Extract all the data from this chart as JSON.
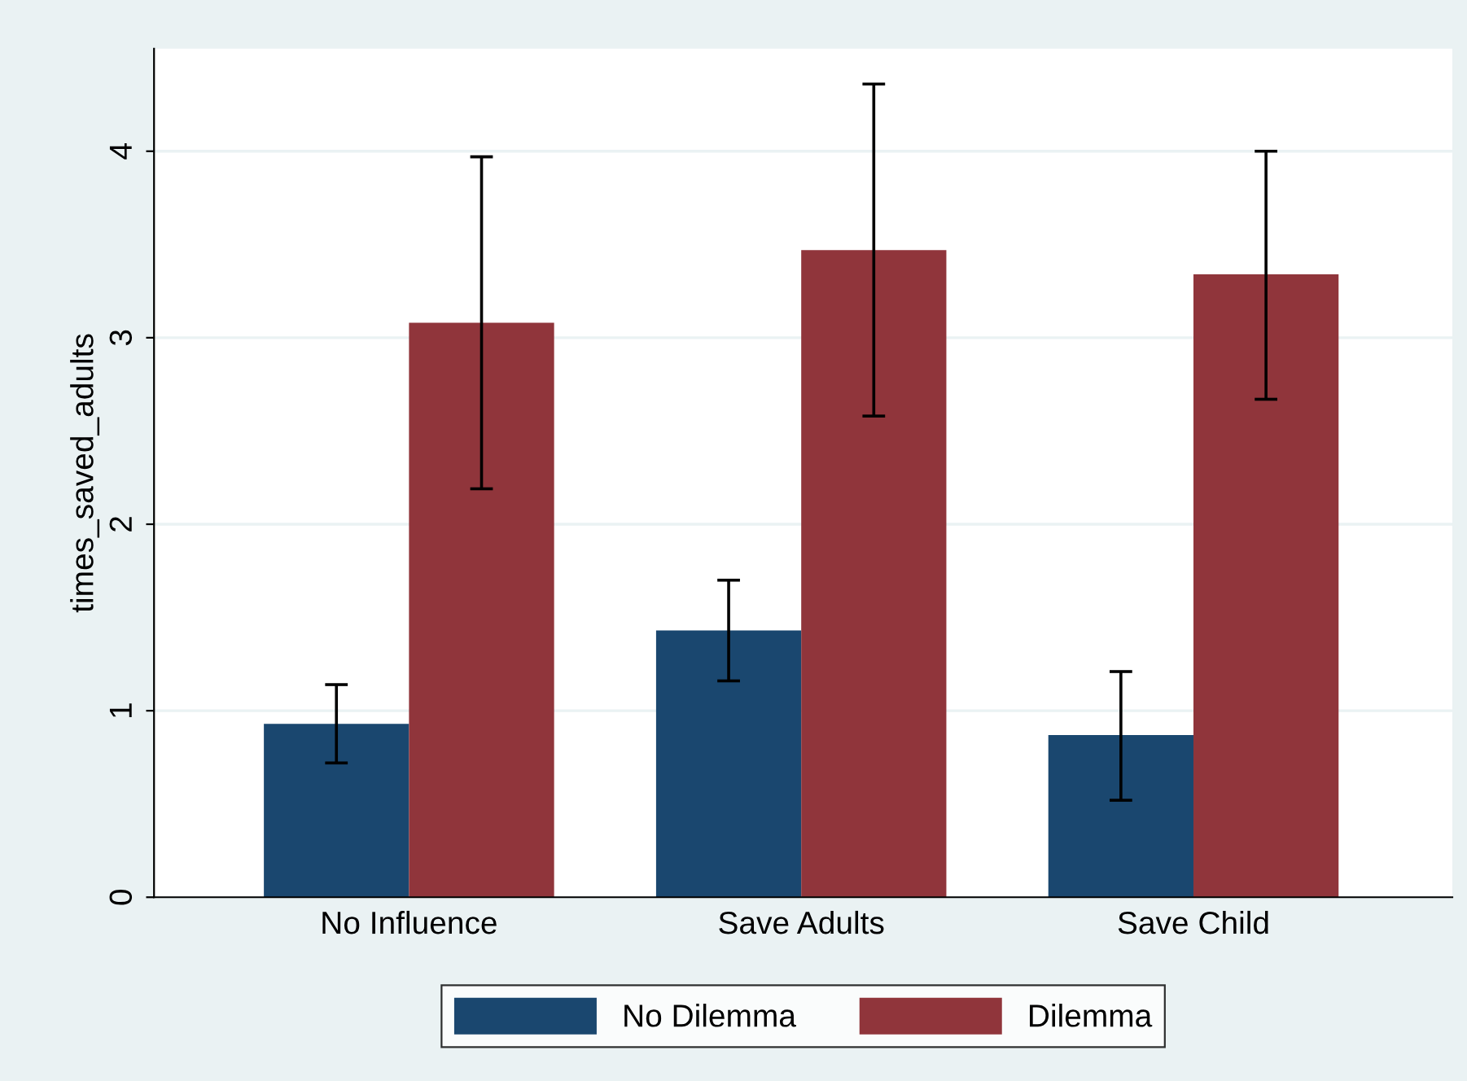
{
  "chart_data": {
    "type": "bar",
    "ylabel": "times_saved_adults",
    "categories": [
      "No Influence",
      "Save Adults",
      "Save Child"
    ],
    "series": [
      {
        "name": "No Dilemma",
        "color": "#1a476f",
        "values": [
          0.93,
          1.43,
          0.87
        ],
        "errors": [
          [
            0.72,
            1.14
          ],
          [
            1.16,
            1.7
          ],
          [
            0.52,
            1.21
          ]
        ]
      },
      {
        "name": "Dilemma",
        "color": "#90353b",
        "values": [
          3.08,
          3.47,
          3.34
        ],
        "errors": [
          [
            2.19,
            3.97
          ],
          [
            2.58,
            4.36
          ],
          [
            2.67,
            4.0
          ]
        ]
      }
    ],
    "ylim": [
      0,
      4.55
    ],
    "yticks": [
      0,
      1,
      2,
      3,
      4
    ],
    "grid": "y",
    "legend": "bottom"
  }
}
